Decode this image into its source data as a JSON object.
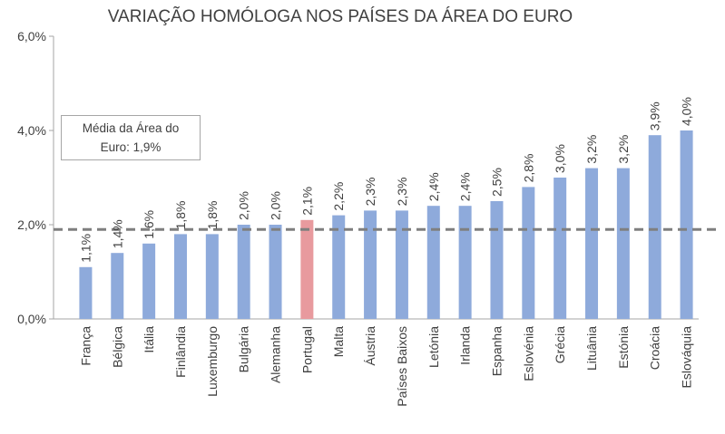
{
  "chart_data": {
    "type": "bar",
    "title": "VARIAÇÃO HOMÓLOGA NOS PAÍSES DA ÁREA DO EURO",
    "xlabel": "",
    "ylabel": "",
    "ylim": [
      0,
      6
    ],
    "yticks": [
      "0,0%",
      "2,0%",
      "4,0%",
      "6,0%"
    ],
    "ytick_values": [
      0,
      2,
      4,
      6
    ],
    "categories": [
      "França",
      "Bélgica",
      "Itália",
      "Finlândia",
      "Luxemburgo",
      "Bulgária",
      "Alemanha",
      "Portugal",
      "Malta",
      "Áustria",
      "Países Baixos",
      "Letónia",
      "Irlanda",
      "Espanha",
      "Eslovénia",
      "Grécia",
      "Lituânia",
      "Estónia",
      "Croácia",
      "Eslováquia"
    ],
    "values": [
      1.1,
      1.4,
      1.6,
      1.8,
      1.8,
      2.0,
      2.0,
      2.1,
      2.2,
      2.3,
      2.3,
      2.4,
      2.4,
      2.5,
      2.8,
      3.0,
      3.2,
      3.2,
      3.9,
      4.0
    ],
    "labels": [
      "1,1%",
      "1,4%",
      "1,6%",
      "1,8%",
      "1,8%",
      "2,0%",
      "2,0%",
      "2,1%",
      "2,2%",
      "2,3%",
      "2,3%",
      "2,4%",
      "2,4%",
      "2,5%",
      "2,8%",
      "3,0%",
      "3,2%",
      "3,2%",
      "3,9%",
      "4,0%"
    ],
    "highlight": "Portugal",
    "reference_line": {
      "value": 1.9,
      "style": "dashed"
    },
    "annotation": {
      "line1": "Média da Área do",
      "line2": "Euro: 1,9%"
    },
    "colors": {
      "bar": "#8eaadb",
      "highlight": "#e89a9e",
      "reference": "#7f7f7f",
      "axis": "#a6a6a6",
      "text": "#404040"
    }
  }
}
